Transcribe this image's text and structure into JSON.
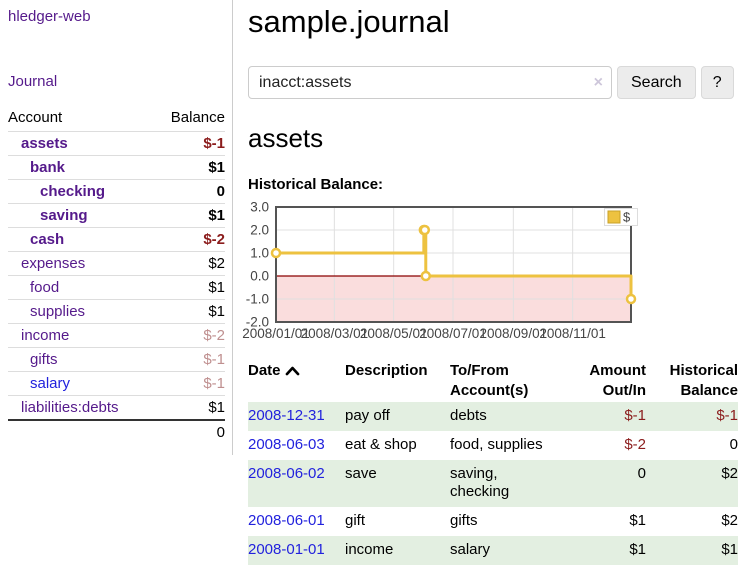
{
  "app": {
    "title": "hledger-web",
    "nav_journal": "Journal"
  },
  "sidebar": {
    "header": {
      "account": "Account",
      "balance": "Balance"
    },
    "accounts": [
      {
        "name": "assets",
        "balance": "$-1"
      },
      {
        "name": "bank",
        "balance": "$1"
      },
      {
        "name": "checking",
        "balance": "0"
      },
      {
        "name": "saving",
        "balance": "$1"
      },
      {
        "name": "cash",
        "balance": "$-2"
      },
      {
        "name": "expenses",
        "balance": "$2"
      },
      {
        "name": "food",
        "balance": "$1"
      },
      {
        "name": "supplies",
        "balance": "$1"
      },
      {
        "name": "income",
        "balance": "$-2"
      },
      {
        "name": "gifts",
        "balance": "$-1"
      },
      {
        "name": "salary",
        "balance": "$-1"
      },
      {
        "name": "liabilities:debts",
        "balance": "$1"
      }
    ],
    "total": "0"
  },
  "main": {
    "title": "sample.journal",
    "search": {
      "value": "inacct:assets",
      "clear_icon": "×",
      "button": "Search",
      "help": "?"
    },
    "account_heading": "assets",
    "chart_title": "Historical Balance:"
  },
  "chart_data": {
    "type": "line",
    "step": true,
    "title": "Historical Balance",
    "series": [
      {
        "name": "$",
        "color": "#edc240",
        "points": [
          {
            "date": "2008-01-01",
            "value": 1
          },
          {
            "date": "2008-06-01",
            "value": 2
          },
          {
            "date": "2008-06-02",
            "value": 2
          },
          {
            "date": "2008-06-03",
            "value": 0
          },
          {
            "date": "2008-12-31",
            "value": -1
          }
        ]
      }
    ],
    "ylim": [
      -2,
      3
    ],
    "yticks": [
      3,
      2,
      1,
      0,
      -1,
      -2
    ],
    "xlim": [
      "2008-01-01",
      "2008-12-31"
    ],
    "xticks": [
      "2008/01/01",
      "2008/03/01",
      "2008/05/01",
      "2008/07/01",
      "2008/09/01",
      "2008/11/01"
    ],
    "legend": {
      "label": "$",
      "position": "top-right"
    },
    "grid": true,
    "colors": {
      "negative_region": "#fadddd",
      "zero_line": "#8b0000",
      "gridline": "#e0e0e0",
      "border": "#545454",
      "tick_text": "#444444"
    }
  },
  "register": {
    "headers": [
      "Date",
      "Description",
      "To/From Account(s)",
      "Amount Out/In",
      "Historical Balance"
    ],
    "rows": [
      {
        "date": "2008-12-31",
        "description": "pay off",
        "accounts": "debts",
        "amount": "$-1",
        "balance": "$-1"
      },
      {
        "date": "2008-06-03",
        "description": "eat & shop",
        "accounts": "food, supplies",
        "amount": "$-2",
        "balance": "0"
      },
      {
        "date": "2008-06-02",
        "description": "save",
        "accounts": "saving, checking",
        "amount": "0",
        "balance": "$2"
      },
      {
        "date": "2008-06-01",
        "description": "gift",
        "accounts": "gifts",
        "amount": "$1",
        "balance": "$2"
      },
      {
        "date": "2008-01-01",
        "description": "income",
        "accounts": "salary",
        "amount": "$1",
        "balance": "$1"
      }
    ]
  },
  "colors": {
    "link_purple": "#551a8b",
    "link_blue": "#2222dd",
    "negative_strong": "#8b1c1c",
    "negative_dim": "#bf8f8f",
    "row_green": "#e3efe1",
    "series_yellow": "#edc240"
  }
}
